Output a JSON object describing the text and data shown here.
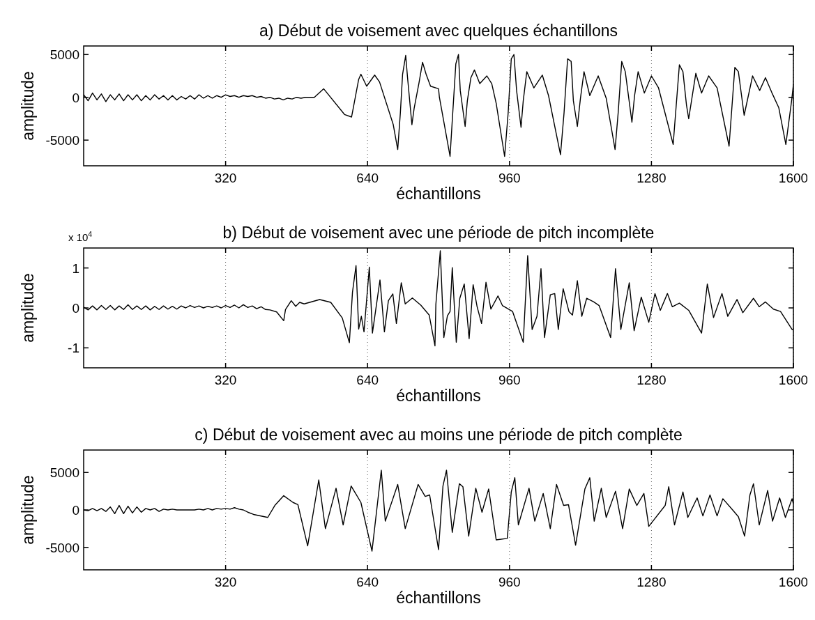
{
  "chart_data": [
    {
      "type": "line",
      "title": "a) Début de voisement avec quelques échantillons",
      "xlabel": "échantillons",
      "ylabel": "amplitude",
      "xlim": [
        0,
        1600
      ],
      "xticks": [
        320,
        640,
        960,
        1280,
        1600
      ],
      "ylim": [
        -8000,
        6000
      ],
      "yticks": [
        -5000,
        0,
        5000
      ],
      "grid": "x",
      "series": [
        {
          "color": "#000000",
          "x": [
            0,
            10,
            20,
            30,
            40,
            50,
            60,
            70,
            80,
            90,
            100,
            110,
            120,
            130,
            140,
            150,
            160,
            170,
            180,
            190,
            200,
            210,
            220,
            230,
            240,
            250,
            260,
            270,
            280,
            290,
            300,
            310,
            320,
            330,
            340,
            350,
            360,
            370,
            380,
            390,
            400,
            410,
            420,
            430,
            440,
            450,
            460,
            470,
            480,
            490,
            500,
            510,
            520,
            541,
            588,
            604,
            620,
            625,
            638,
            656,
            667,
            698,
            708,
            714,
            719,
            726,
            730,
            740,
            745,
            756,
            764,
            772,
            782,
            800,
            802,
            826,
            831,
            839,
            845,
            849,
            860,
            865,
            873,
            881,
            893,
            909,
            920,
            930,
            949,
            957,
            964,
            970,
            976,
            986,
            991,
            999,
            1015,
            1034,
            1048,
            1075,
            1083,
            1091,
            1099,
            1104,
            1113,
            1120,
            1128,
            1141,
            1160,
            1178,
            1198,
            1205,
            1213,
            1221,
            1236,
            1242,
            1250,
            1264,
            1280,
            1296,
            1329,
            1343,
            1351,
            1359,
            1364,
            1380,
            1393,
            1409,
            1428,
            1455,
            1468,
            1476,
            1489,
            1508,
            1524,
            1537,
            1551,
            1567,
            1583,
            1596,
            1600
          ],
          "values": [
            300,
            -400,
            500,
            -300,
            400,
            -500,
            300,
            -300,
            400,
            -400,
            300,
            -300,
            300,
            -400,
            200,
            -300,
            300,
            -200,
            200,
            -300,
            200,
            -300,
            100,
            -200,
            200,
            -200,
            300,
            -100,
            200,
            -100,
            200,
            0,
            300,
            100,
            200,
            0,
            200,
            100,
            200,
            0,
            100,
            -100,
            0,
            -200,
            -100,
            -300,
            -100,
            -200,
            0,
            -100,
            0,
            0,
            0,
            1000,
            -2000,
            -2300,
            2100,
            2700,
            1300,
            2600,
            1800,
            -3200,
            -6100,
            -1800,
            2700,
            4900,
            2400,
            -3200,
            -1300,
            1700,
            4100,
            2700,
            1300,
            1000,
            0,
            -6900,
            -2700,
            3900,
            5000,
            800,
            -3400,
            -400,
            2300,
            3200,
            1600,
            2500,
            1600,
            -700,
            -6900,
            -1800,
            4500,
            5000,
            800,
            -3500,
            -400,
            3000,
            1100,
            2600,
            200,
            -6700,
            -1800,
            4500,
            4200,
            -400,
            -3400,
            -100,
            3000,
            200,
            2500,
            -100,
            -6100,
            -1800,
            4200,
            3000,
            -2900,
            200,
            3000,
            500,
            2500,
            1100,
            -5500,
            3800,
            3000,
            -900,
            -2500,
            2800,
            500,
            2500,
            1100,
            -5700,
            3500,
            3000,
            -2100,
            2500,
            800,
            2300,
            600,
            -1200,
            -5500,
            -400,
            1500
          ]
        }
      ]
    },
    {
      "type": "line",
      "title": "b) Début de voisement avec une période de pitch incomplète",
      "xlabel": "échantillons",
      "ylabel": "amplitude",
      "annotations": [
        "x 10$^{4}$"
      ],
      "xlim": [
        0,
        1600
      ],
      "xticks": [
        320,
        640,
        960,
        1280,
        1600
      ],
      "ylim": [
        -1.5,
        1.5
      ],
      "yticks": [
        -1,
        0,
        1
      ],
      "grid": "x",
      "series": [
        {
          "color": "#000000",
          "x": [
            0,
            10,
            20,
            30,
            40,
            50,
            60,
            70,
            80,
            90,
            100,
            110,
            120,
            130,
            140,
            150,
            160,
            170,
            180,
            190,
            200,
            210,
            220,
            230,
            240,
            250,
            260,
            270,
            280,
            290,
            300,
            310,
            320,
            330,
            340,
            350,
            360,
            370,
            380,
            390,
            400,
            410,
            420,
            435,
            451,
            455,
            468,
            478,
            487,
            497,
            532,
            557,
            583,
            599,
            606,
            614,
            620,
            626,
            632,
            644,
            651,
            668,
            678,
            687,
            697,
            705,
            716,
            725,
            741,
            760,
            779,
            792,
            794,
            804,
            812,
            820,
            826,
            831,
            840,
            848,
            858,
            869,
            878,
            887,
            897,
            907,
            918,
            934,
            944,
            967,
            991,
            1001,
            1011,
            1022,
            1031,
            1039,
            1052,
            1062,
            1070,
            1081,
            1094,
            1102,
            1113,
            1123,
            1134,
            1150,
            1162,
            1188,
            1199,
            1211,
            1230,
            1241,
            1257,
            1274,
            1288,
            1300,
            1316,
            1327,
            1343,
            1364,
            1393,
            1406,
            1420,
            1439,
            1452,
            1473,
            1486,
            1510,
            1523,
            1537,
            1555,
            1571,
            1597,
            1600
          ],
          "values": [
            0.02,
            -0.05,
            0.05,
            -0.05,
            0.06,
            -0.04,
            0.06,
            -0.05,
            0.05,
            -0.04,
            0.08,
            -0.04,
            0.05,
            -0.04,
            0.05,
            -0.05,
            0.04,
            -0.04,
            0.05,
            -0.03,
            0.04,
            -0.03,
            0.05,
            0,
            0.06,
            0.01,
            0.05,
            0,
            0.04,
            0.01,
            0.05,
            0,
            0.06,
            0.01,
            0.07,
            0,
            0.08,
            0.01,
            0.05,
            -0.02,
            0.03,
            -0.04,
            -0.05,
            -0.1,
            -0.32,
            -0.04,
            0.18,
            0.04,
            0.14,
            0.1,
            0.21,
            0.14,
            -0.25,
            -0.87,
            0.39,
            1.06,
            -0.53,
            -0.21,
            -0.6,
            1.02,
            -0.63,
            0.7,
            -0.6,
            0.18,
            0.35,
            -0.39,
            0.63,
            0.1,
            0.25,
            0.07,
            -0.18,
            -0.95,
            0.09,
            1.43,
            -0.74,
            -0.2,
            -0.09,
            1.01,
            -0.86,
            0.24,
            0.6,
            -0.77,
            0.58,
            0.03,
            -0.39,
            0.64,
            -0.03,
            0.3,
            0.06,
            -0.09,
            -0.86,
            1.31,
            -0.54,
            -0.21,
            0.98,
            -0.74,
            0.33,
            0.36,
            -0.54,
            0.48,
            -0.09,
            -0.18,
            0.68,
            -0.21,
            0.24,
            0.15,
            0.06,
            -0.74,
            0.98,
            -0.54,
            0.63,
            -0.57,
            0.27,
            -0.36,
            0.36,
            -0.06,
            0.36,
            0.03,
            0.12,
            -0.06,
            -0.63,
            0.6,
            -0.24,
            0.36,
            -0.21,
            0.21,
            -0.12,
            0.24,
            0.03,
            0.15,
            -0.03,
            -0.09,
            -0.54,
            -0.55
          ]
        }
      ]
    },
    {
      "type": "line",
      "title": "c) Début de voisement avec au moins une période de pitch complète",
      "xlabel": "échantillons",
      "ylabel": "amplitude",
      "xlim": [
        0,
        1600
      ],
      "xticks": [
        320,
        640,
        960,
        1280,
        1600
      ],
      "ylim": [
        -8000,
        8000
      ],
      "yticks": [
        -5000,
        0,
        5000
      ],
      "grid": "x",
      "series": [
        {
          "color": "#000000",
          "x": [
            0,
            10,
            20,
            30,
            40,
            50,
            60,
            70,
            80,
            90,
            100,
            110,
            120,
            130,
            140,
            150,
            160,
            170,
            180,
            190,
            200,
            210,
            220,
            230,
            240,
            250,
            260,
            270,
            280,
            290,
            300,
            310,
            320,
            330,
            340,
            350,
            360,
            370,
            383,
            415,
            431,
            451,
            472,
            483,
            505,
            530,
            545,
            569,
            585,
            603,
            625,
            650,
            671,
            680,
            708,
            725,
            754,
            770,
            780,
            800,
            810,
            818,
            831,
            847,
            855,
            868,
            884,
            898,
            913,
            930,
            955,
            964,
            972,
            980,
            1004,
            1017,
            1036,
            1052,
            1066,
            1082,
            1093,
            1109,
            1130,
            1141,
            1151,
            1167,
            1178,
            1199,
            1215,
            1230,
            1247,
            1263,
            1274,
            1311,
            1319,
            1332,
            1351,
            1362,
            1383,
            1396,
            1412,
            1428,
            1441,
            1463,
            1476,
            1490,
            1502,
            1510,
            1523,
            1542,
            1553,
            1569,
            1582,
            1597,
            1600
          ],
          "values": [
            0,
            -100,
            200,
            -100,
            200,
            -200,
            400,
            -500,
            600,
            -500,
            500,
            -400,
            400,
            -300,
            200,
            0,
            200,
            -200,
            100,
            0,
            100,
            0,
            0,
            0,
            0,
            0,
            100,
            0,
            200,
            0,
            200,
            100,
            200,
            100,
            300,
            100,
            0,
            -300,
            -600,
            -1000,
            600,
            1900,
            1000,
            700,
            -4800,
            4000,
            -2500,
            2900,
            -2000,
            3200,
            1000,
            -5500,
            5300,
            -1500,
            3400,
            -2500,
            3400,
            1800,
            2000,
            -5300,
            3200,
            5300,
            -3000,
            3500,
            3100,
            -3500,
            2900,
            -300,
            2800,
            -4000,
            -3800,
            2400,
            4300,
            -2000,
            2900,
            -1500,
            2200,
            -2500,
            3400,
            600,
            700,
            -4700,
            2800,
            4300,
            -1500,
            2900,
            -1000,
            2500,
            -2500,
            2800,
            600,
            2200,
            -2200,
            600,
            3100,
            -2000,
            2400,
            -1000,
            1600,
            -800,
            2000,
            -800,
            1500,
            0,
            -900,
            -3500,
            2000,
            3500,
            -2000,
            2600,
            -1500,
            1600,
            -1000,
            1500,
            800
          ]
        }
      ]
    }
  ]
}
